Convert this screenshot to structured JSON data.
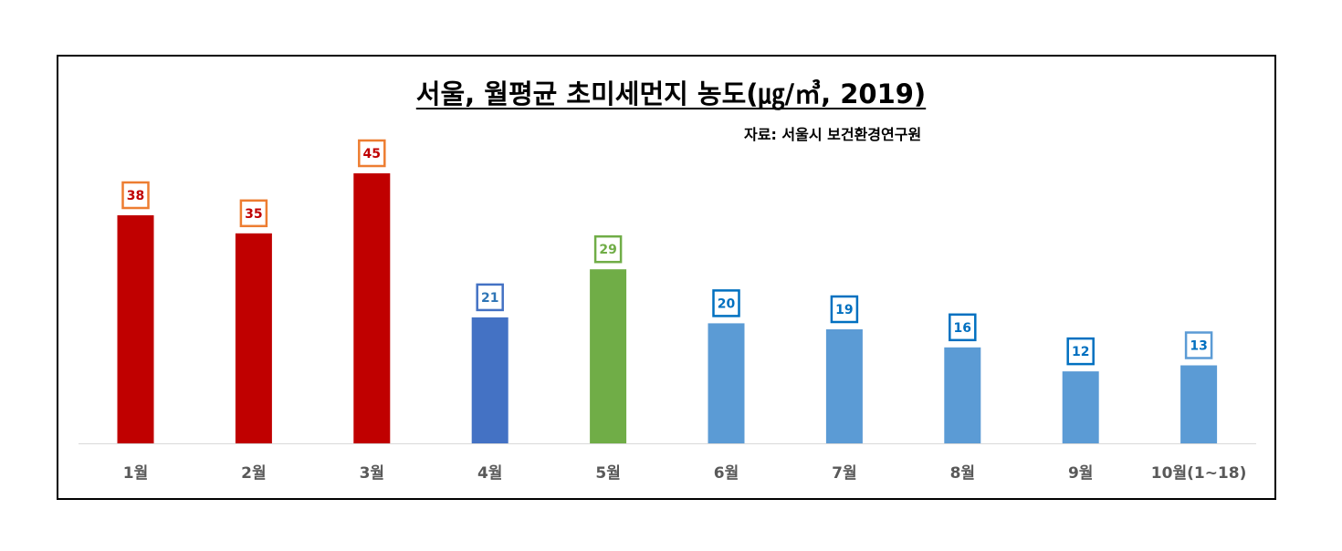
{
  "chart_data": {
    "type": "bar",
    "title": "서울, 월평균 초미세먼지 농도(㎍/㎥, 2019)",
    "source": "자료: 서울시 보건환경연구원",
    "categories": [
      "1월",
      "2월",
      "3월",
      "4월",
      "5월",
      "6월",
      "7월",
      "8월",
      "9월",
      "10월(1~18)"
    ],
    "values": [
      38,
      35,
      45,
      21,
      29,
      20,
      19,
      16,
      12,
      13
    ],
    "bar_colors": [
      "#C00000",
      "#C00000",
      "#C00000",
      "#4472C4",
      "#70AD47",
      "#5B9BD5",
      "#5B9BD5",
      "#5B9BD5",
      "#5B9BD5",
      "#5B9BD5"
    ],
    "label_text_colors": [
      "#C00000",
      "#C00000",
      "#C00000",
      "#2E75B6",
      "#70AD47",
      "#0070C0",
      "#0070C0",
      "#0070C0",
      "#0070C0",
      "#0070C0"
    ],
    "label_border_colors": [
      "#ED7D31",
      "#ED7D31",
      "#ED7D31",
      "#4472C4",
      "#70AD47",
      "#0070C0",
      "#0070C0",
      "#0070C0",
      "#0070C0",
      "#5B9BD5"
    ],
    "ylim": [
      0,
      45
    ],
    "xlabel": "",
    "ylabel": "",
    "grid": false,
    "legend": "none"
  }
}
